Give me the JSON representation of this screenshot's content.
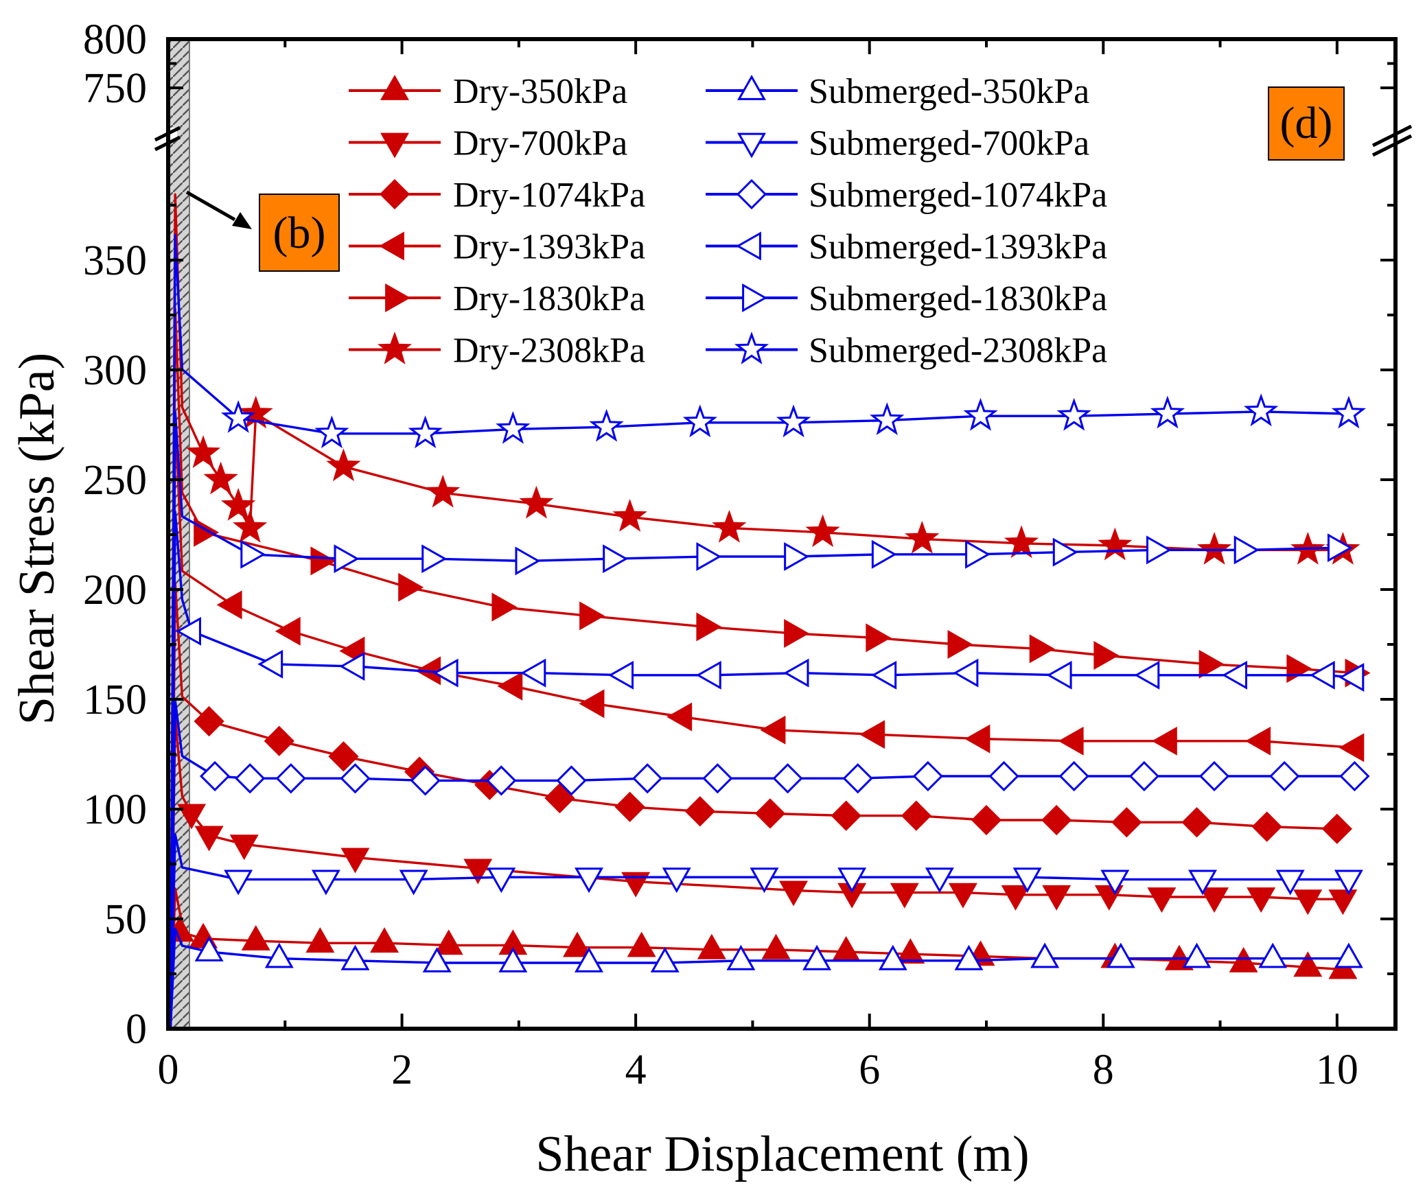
{
  "chart_data": {
    "type": "line",
    "panel_label": "(d)",
    "inset_label": "(b)",
    "xlabel": "Shear Displacement (m)",
    "ylabel": "Shear Stress (kPa)",
    "xlim": [
      0,
      10.5
    ],
    "xticks": [
      0,
      2,
      4,
      6,
      8,
      10
    ],
    "ylim_lower": [
      0,
      400
    ],
    "yticks_lower": [
      0,
      50,
      100,
      150,
      200,
      250,
      300,
      350
    ],
    "ylim_upper": [
      700,
      800
    ],
    "yticks_upper": [
      750,
      800
    ],
    "axis_break": "y between 400 and 700 kPa",
    "shaded_region_x": [
      0,
      0.18
    ],
    "colors": {
      "dry": "#cc0000",
      "submerged": "#0000ee",
      "panel_fill": "#ff8000"
    },
    "series": [
      {
        "name": "Dry-350kPa",
        "group": "dry",
        "marker": "triangle-up",
        "filled": true,
        "x": [
          0.1,
          0.3,
          0.75,
          1.3,
          1.85,
          2.4,
          2.95,
          3.5,
          4.05,
          4.65,
          5.2,
          5.8,
          6.35,
          6.95,
          7.5,
          8.1,
          8.65,
          9.2,
          9.75,
          10.05
        ],
        "y": [
          44,
          41,
          40,
          39,
          39,
          38,
          38,
          37,
          37,
          36,
          36,
          35,
          34,
          33,
          32,
          32,
          31,
          30,
          28,
          27
        ]
      },
      {
        "name": "Dry-700kPa",
        "group": "dry",
        "marker": "triangle-down",
        "filled": true,
        "x": [
          0.2,
          0.35,
          0.65,
          1.6,
          2.65,
          4.0,
          5.35,
          5.85,
          6.3,
          6.8,
          7.25,
          7.6,
          8.05,
          8.5,
          8.95,
          9.35,
          9.75,
          10.05
        ],
        "y": [
          98,
          88,
          84,
          78,
          73,
          67,
          63,
          62,
          62,
          62,
          61,
          61,
          61,
          60,
          60,
          60,
          59,
          59
        ]
      },
      {
        "name": "Dry-1074kPa",
        "group": "dry",
        "marker": "diamond",
        "filled": true,
        "x": [
          0.35,
          0.95,
          1.5,
          2.15,
          2.75,
          3.35,
          3.95,
          4.55,
          5.15,
          5.8,
          6.4,
          7.0,
          7.6,
          8.2,
          8.8,
          9.4,
          10.0
        ],
        "y": [
          140,
          131,
          124,
          117,
          111,
          105,
          101,
          99,
          98,
          97,
          97,
          95,
          95,
          94,
          94,
          92,
          91
        ]
      },
      {
        "name": "Dry-1393kPa",
        "group": "dry",
        "marker": "triangle-left",
        "filled": true,
        "x": [
          0.55,
          1.05,
          1.6,
          2.25,
          2.95,
          3.65,
          4.4,
          5.2,
          6.05,
          6.95,
          7.75,
          8.55,
          9.35,
          10.15
        ],
        "y": [
          193,
          181,
          172,
          163,
          156,
          148,
          142,
          136,
          134,
          132,
          131,
          131,
          131,
          128
        ]
      },
      {
        "name": "Dry-1830kPa",
        "group": "dry",
        "marker": "triangle-right",
        "filled": true,
        "x": [
          0.3,
          1.3,
          2.05,
          2.85,
          3.6,
          4.6,
          5.35,
          6.05,
          6.75,
          7.45,
          8.0,
          8.9,
          9.65,
          10.15
        ],
        "y": [
          226,
          213,
          201,
          192,
          188,
          183,
          180,
          178,
          175,
          173,
          170,
          166,
          164,
          162
        ]
      },
      {
        "name": "Dry-2308kPa",
        "group": "dry",
        "marker": "star",
        "filled": true,
        "x": [
          0.3,
          0.45,
          0.6,
          0.7,
          0.75,
          1.5,
          2.35,
          3.15,
          3.95,
          4.8,
          5.6,
          6.45,
          7.3,
          8.1,
          8.95,
          9.75,
          10.05
        ],
        "y": [
          262,
          250,
          238,
          228,
          280,
          256,
          244,
          239,
          233,
          228,
          226,
          223,
          221,
          220,
          218,
          218,
          218
        ]
      },
      {
        "name": "Submerged-350kPa",
        "group": "submerged",
        "marker": "triangle-up",
        "filled": false,
        "x": [
          0.35,
          0.95,
          1.6,
          2.3,
          2.95,
          3.6,
          4.25,
          4.9,
          5.55,
          6.2,
          6.85,
          7.5,
          8.15,
          8.8,
          9.45,
          10.1
        ],
        "y": [
          35,
          32,
          31,
          30,
          30,
          30,
          30,
          31,
          31,
          31,
          31,
          32,
          32,
          32,
          32,
          32
        ]
      },
      {
        "name": "Submerged-700kPa",
        "group": "submerged",
        "marker": "triangle-down",
        "filled": false,
        "x": [
          0.6,
          1.35,
          2.1,
          2.85,
          3.6,
          4.35,
          5.1,
          5.85,
          6.6,
          7.35,
          8.1,
          8.85,
          9.6,
          10.1
        ],
        "y": [
          68,
          68,
          68,
          69,
          69,
          69,
          69,
          69,
          69,
          69,
          68,
          68,
          68,
          68
        ]
      },
      {
        "name": "Submerged-1074kPa",
        "group": "submerged",
        "marker": "diamond",
        "filled": false,
        "x": [
          0.4,
          0.7,
          1.05,
          1.6,
          2.2,
          2.85,
          3.45,
          4.1,
          4.7,
          5.3,
          5.9,
          6.5,
          7.15,
          7.75,
          8.35,
          8.95,
          9.55,
          10.15
        ],
        "y": [
          115,
          114,
          114,
          114,
          113,
          113,
          113,
          114,
          114,
          114,
          114,
          115,
          115,
          115,
          115,
          115,
          115,
          115
        ]
      },
      {
        "name": "Submerged-1393kPa",
        "group": "submerged",
        "marker": "triangle-left",
        "filled": false,
        "x": [
          0.2,
          0.9,
          1.6,
          2.4,
          3.15,
          3.9,
          4.65,
          5.4,
          6.15,
          6.85,
          7.65,
          8.4,
          9.15,
          9.9,
          10.15
        ],
        "y": [
          181,
          166,
          165,
          162,
          162,
          161,
          161,
          162,
          161,
          162,
          161,
          161,
          161,
          161,
          160
        ]
      },
      {
        "name": "Submerged-1830kPa",
        "group": "submerged",
        "marker": "triangle-right",
        "filled": false,
        "x": [
          0.7,
          1.5,
          2.25,
          3.05,
          3.8,
          4.6,
          5.35,
          6.1,
          6.9,
          7.65,
          8.45,
          9.2,
          10.0
        ],
        "y": [
          216,
          214,
          214,
          213,
          214,
          215,
          215,
          216,
          216,
          217,
          218,
          218,
          219
        ]
      },
      {
        "name": "Submerged-2308kPa",
        "group": "submerged",
        "marker": "star",
        "filled": false,
        "x": [
          0.6,
          1.4,
          2.2,
          2.95,
          3.75,
          4.55,
          5.35,
          6.15,
          6.95,
          7.75,
          8.55,
          9.35,
          10.1
        ],
        "y": [
          278,
          271,
          271,
          273,
          274,
          276,
          276,
          277,
          279,
          279,
          280,
          281,
          280
        ]
      }
    ]
  }
}
